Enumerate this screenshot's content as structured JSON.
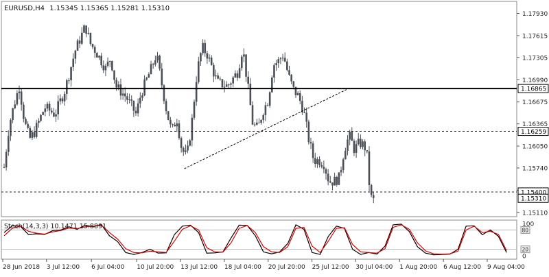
{
  "header": {
    "symbol_timeframe": "EURUSD,H4",
    "ohlc": "1.15345 1.15365 1.15281 1.15310"
  },
  "chart_data": [
    {
      "type": "candlestick",
      "symbol": "EURUSD",
      "timeframe": "H4",
      "ylim": [
        1.1505,
        1.181
      ],
      "y_ticks": [
        "1.17930",
        "1.17615",
        "1.17305",
        "1.16990",
        "1.16675",
        "1.16365",
        "1.16050",
        "1.15740",
        "1.15425",
        "1.15110"
      ],
      "x_ticks": [
        "28 Jun 2018",
        "3 Jul 12:00",
        "6 Jul 04:00",
        "10 Jul 20:00",
        "13 Jul 12:00",
        "18 Jul 04:00",
        "20 Jul 20:00",
        "25 Jul 12:00",
        "30 Jul 04:00",
        "1 Aug 20:00",
        "6 Aug 12:00",
        "9 Aug 04:00"
      ],
      "horizontal_levels": [
        {
          "label": "1.16865",
          "value": 1.16865,
          "style": "solid"
        },
        {
          "label": "1.16259",
          "value": 1.16259,
          "style": "dashed"
        },
        {
          "label": "1.15400",
          "value": 1.154,
          "style": "dashed"
        }
      ],
      "current_price_label": "1.15310",
      "current_price": 1.1531,
      "trendline": {
        "from": [
          0.355,
          1.1573
        ],
        "to": [
          0.675,
          1.1687
        ],
        "style": "dashed"
      },
      "close_path": [
        [
          0.0,
          1.1575
        ],
        [
          0.01,
          1.1635
        ],
        [
          0.02,
          1.1665
        ],
        [
          0.03,
          1.169
        ],
        [
          0.04,
          1.164
        ],
        [
          0.05,
          1.1615
        ],
        [
          0.06,
          1.1625
        ],
        [
          0.08,
          1.166
        ],
        [
          0.1,
          1.165
        ],
        [
          0.12,
          1.1685
        ],
        [
          0.14,
          1.174
        ],
        [
          0.16,
          1.1775
        ],
        [
          0.17,
          1.175
        ],
        [
          0.18,
          1.174
        ],
        [
          0.2,
          1.1715
        ],
        [
          0.21,
          1.173
        ],
        [
          0.22,
          1.169
        ],
        [
          0.24,
          1.1675
        ],
        [
          0.26,
          1.165
        ],
        [
          0.27,
          1.168
        ],
        [
          0.29,
          1.1715
        ],
        [
          0.3,
          1.1735
        ],
        [
          0.31,
          1.1695
        ],
        [
          0.32,
          1.1655
        ],
        [
          0.33,
          1.1625
        ],
        [
          0.34,
          1.1645
        ],
        [
          0.35,
          1.16
        ],
        [
          0.36,
          1.159
        ],
        [
          0.37,
          1.164
        ],
        [
          0.38,
          1.171
        ],
        [
          0.39,
          1.1745
        ],
        [
          0.4,
          1.1735
        ],
        [
          0.42,
          1.1695
        ],
        [
          0.44,
          1.169
        ],
        [
          0.46,
          1.171
        ],
        [
          0.47,
          1.1745
        ],
        [
          0.48,
          1.169
        ],
        [
          0.49,
          1.1635
        ],
        [
          0.5,
          1.163
        ],
        [
          0.51,
          1.1655
        ],
        [
          0.52,
          1.167
        ],
        [
          0.53,
          1.172
        ],
        [
          0.54,
          1.1725
        ],
        [
          0.55,
          1.1735
        ],
        [
          0.56,
          1.1705
        ],
        [
          0.57,
          1.1685
        ],
        [
          0.58,
          1.1675
        ],
        [
          0.59,
          1.1655
        ],
        [
          0.6,
          1.1615
        ],
        [
          0.61,
          1.1585
        ],
        [
          0.62,
          1.1585
        ],
        [
          0.63,
          1.158
        ],
        [
          0.64,
          1.1555
        ],
        [
          0.65,
          1.1555
        ],
        [
          0.66,
          1.156
        ],
        [
          0.67,
          1.16
        ],
        [
          0.68,
          1.162
        ],
        [
          0.69,
          1.16
        ],
        [
          0.7,
          1.161
        ],
        [
          0.71,
          1.1605
        ],
        [
          0.715,
          1.159
        ],
        [
          0.72,
          1.1545
        ],
        [
          0.725,
          1.1525
        ],
        [
          0.73,
          1.1531
        ]
      ]
    },
    {
      "type": "line",
      "indicator": "Stochastic",
      "label": "Stoch(14,3,3) 10.1471 15.8891",
      "ylim": [
        0,
        100
      ],
      "y_ticks": [
        "100",
        "80",
        "20",
        "0"
      ],
      "levels": [
        80,
        20
      ],
      "series": [
        {
          "color": "#000000",
          "values": [
            72,
            93,
            92,
            66,
            68,
            66,
            78,
            80,
            90,
            82,
            95,
            90,
            97,
            62,
            44,
            10,
            4,
            10,
            20,
            8,
            9,
            65,
            92,
            95,
            72,
            8,
            9,
            12,
            55,
            95,
            94,
            62,
            12,
            6,
            12,
            38,
            96,
            82,
            10,
            4,
            60,
            92,
            85,
            20,
            4,
            10,
            5,
            30,
            96,
            98,
            75,
            28,
            8,
            3,
            4,
            5,
            20,
            92,
            93,
            65,
            80,
            60,
            10
          ]
        },
        {
          "color": "#e00000",
          "values": [
            62,
            85,
            92,
            76,
            70,
            67,
            74,
            78,
            86,
            84,
            90,
            91,
            95,
            72,
            52,
            22,
            10,
            9,
            14,
            12,
            10,
            45,
            82,
            93,
            80,
            25,
            12,
            11,
            40,
            85,
            94,
            72,
            28,
            12,
            10,
            28,
            85,
            88,
            30,
            10,
            45,
            85,
            87,
            35,
            12,
            10,
            8,
            22,
            88,
            96,
            82,
            40,
            15,
            6,
            5,
            6,
            14,
            80,
            92,
            72,
            76,
            66,
            16
          ]
        }
      ]
    }
  ],
  "colors": {
    "candle": "#4a4f57",
    "solid_level": "#000000",
    "dashed_level": "#222222",
    "grid": "#b9b9b9",
    "k_line": "#000000",
    "d_line": "#e00000"
  }
}
